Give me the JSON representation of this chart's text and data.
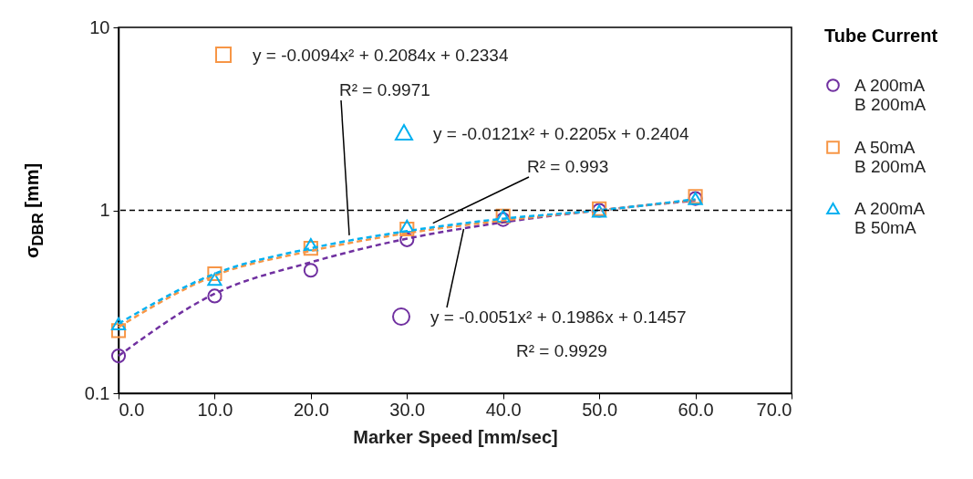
{
  "chart_data": {
    "type": "scatter",
    "xlabel": "Marker Speed [mm/sec]",
    "ylabel": "σ$_{DBR}$ [mm]",
    "legend_title": "Tube Current",
    "legend": "right",
    "log": "y",
    "grid": false,
    "x": [
      0,
      10,
      20,
      30,
      40,
      50,
      60
    ],
    "xlim": [
      0,
      70
    ],
    "xticks": [
      {
        "value": 0,
        "label": "0.0"
      },
      {
        "value": 10,
        "label": "10.0"
      },
      {
        "value": 20,
        "label": "20.0"
      },
      {
        "value": 30,
        "label": "30.0"
      },
      {
        "value": 40,
        "label": "40.0"
      },
      {
        "value": 50,
        "label": "50.0"
      },
      {
        "value": 60,
        "label": "60.0"
      },
      {
        "value": 70,
        "label": "70.0"
      }
    ],
    "ylim": [
      0.1,
      10
    ],
    "yticks": [
      0.1,
      1,
      10
    ],
    "series": [
      {
        "name": "A 200mA\nB 200mA",
        "marker": "circle",
        "color": "#7030a0",
        "values": [
          0.16,
          0.34,
          0.47,
          0.69,
          0.89,
          1.0,
          1.16
        ]
      },
      {
        "name": "A  50mA\nB 200mA",
        "marker": "square",
        "color": "#f79646",
        "values": [
          0.22,
          0.45,
          0.62,
          0.79,
          0.93,
          1.02,
          1.19
        ]
      },
      {
        "name": "A 200mA\nB  50mA",
        "marker": "triangle",
        "color": "#00b0f0",
        "values": [
          0.24,
          0.42,
          0.65,
          0.82,
          0.93,
          0.99,
          1.16
        ]
      },
      {
        "type": "line",
        "line_style": "dashed",
        "color": "#7030a0",
        "x": [
          0,
          10,
          20,
          30,
          40,
          50,
          60
        ],
        "values": [
          0.16,
          0.35,
          0.52,
          0.7,
          0.86,
          1.0,
          1.13
        ]
      },
      {
        "type": "line",
        "line_style": "dashed",
        "color": "#f79646",
        "x": [
          0,
          10,
          20,
          30,
          40,
          50,
          60
        ],
        "values": [
          0.23,
          0.44,
          0.6,
          0.75,
          0.88,
          1.0,
          1.14
        ]
      },
      {
        "type": "line",
        "line_style": "dashed",
        "color": "#00b0f0",
        "x": [
          0,
          10,
          20,
          30,
          40,
          50,
          60
        ],
        "values": [
          0.24,
          0.45,
          0.62,
          0.77,
          0.9,
          1.0,
          1.15
        ]
      }
    ],
    "ref_lines": [
      {
        "axis": "y",
        "value": 1,
        "color": "#000000",
        "line_style": "dashed"
      }
    ],
    "annotations": [
      "y = -0.0094x² + 0.2084x + 0.2334",
      {
        "text": "R² = 0.9971",
        "x": 24,
        "y": 0.73
      },
      "y = -0.0121x² + 0.2205x + 0.2404",
      {
        "text": "R² = 0.993",
        "x": 32.7,
        "y": 0.85
      },
      {
        "text": "y = -0.0051x² + 0.1986x + 0.1457",
        "x": 35.9,
        "y": 0.79
      },
      "R² = 0.9929"
    ]
  }
}
